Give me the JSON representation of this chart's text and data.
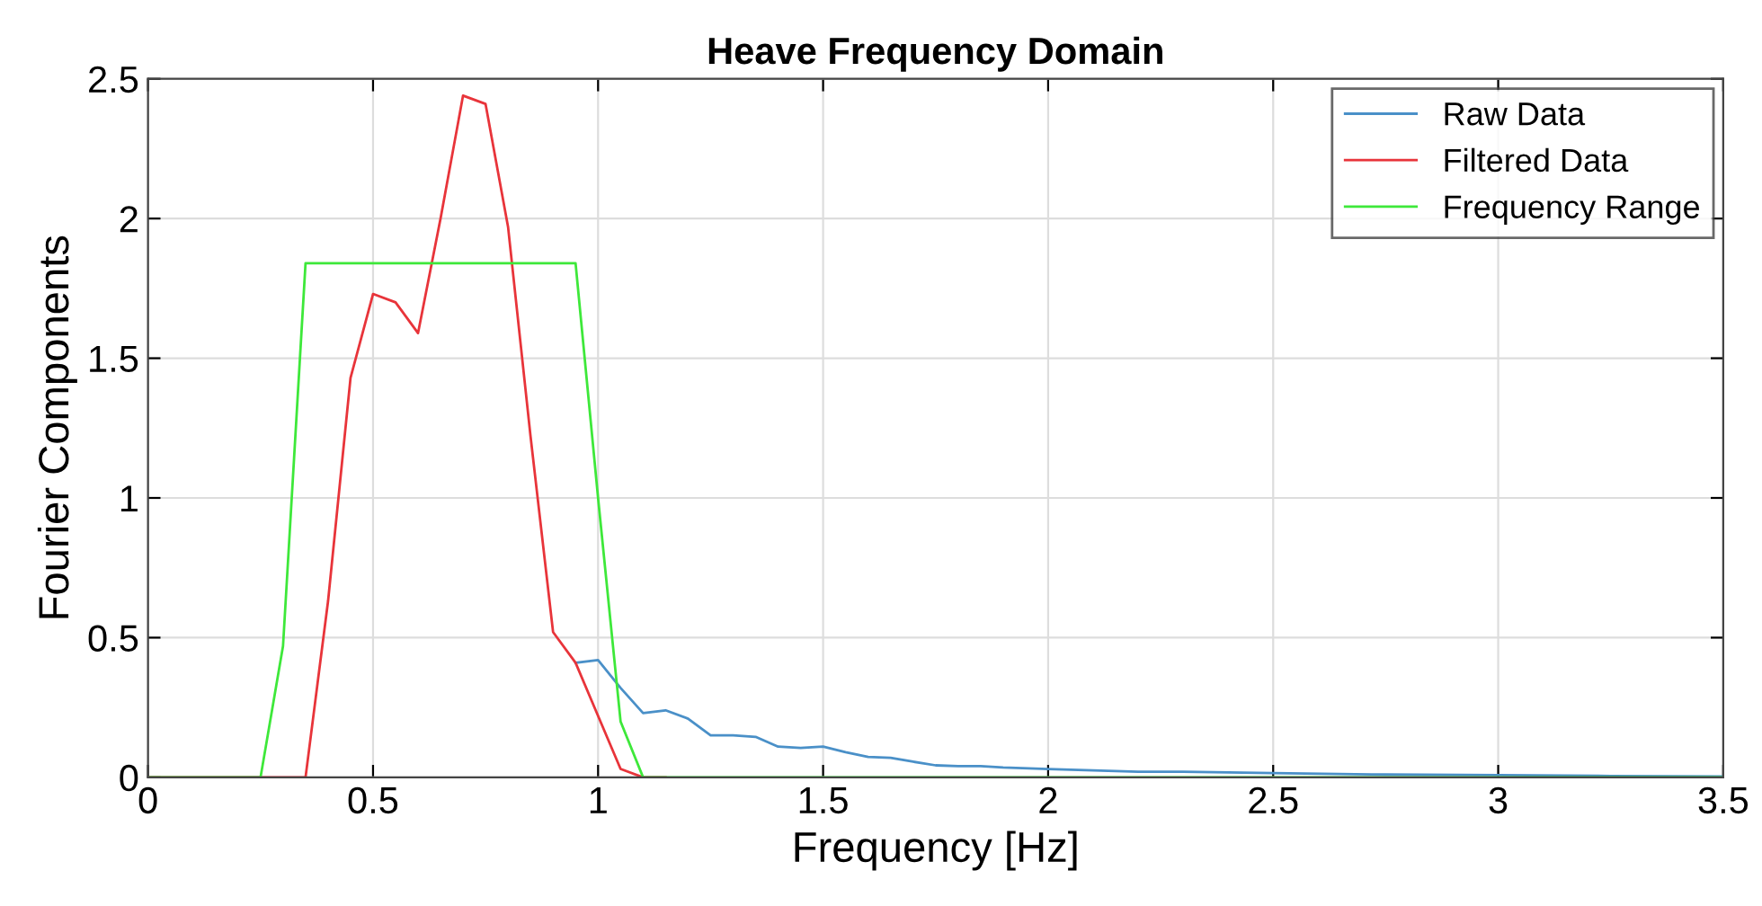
{
  "chart_data": {
    "type": "line",
    "title": "Heave Frequency Domain",
    "xlabel": "Frequency [Hz]",
    "ylabel": "Fourier Components",
    "xlim": [
      0,
      3.5
    ],
    "ylim": [
      0,
      2.5
    ],
    "xticks": [
      0,
      0.5,
      1,
      1.5,
      2,
      2.5,
      3,
      3.5
    ],
    "yticks": [
      0,
      0.5,
      1,
      1.5,
      2,
      2.5
    ],
    "grid": true,
    "legend": "top right",
    "line_style": "solid",
    "marker": "none",
    "series": [
      {
        "name": "Raw Data",
        "color": "#4a90c8",
        "x": [
          0.95,
          1.0,
          1.05,
          1.1,
          1.15,
          1.2,
          1.25,
          1.3,
          1.35,
          1.4,
          1.45,
          1.5,
          1.55,
          1.6,
          1.65,
          1.7,
          1.75,
          1.8,
          1.85,
          1.9,
          2.0,
          2.1,
          2.2,
          2.3,
          2.5,
          2.75,
          3.0,
          3.25,
          3.5
        ],
        "values": [
          0.41,
          0.42,
          0.32,
          0.23,
          0.24,
          0.21,
          0.15,
          0.15,
          0.145,
          0.11,
          0.105,
          0.11,
          0.09,
          0.073,
          0.07,
          0.056,
          0.043,
          0.04,
          0.04,
          0.035,
          0.03,
          0.025,
          0.02,
          0.02,
          0.015,
          0.01,
          0.008,
          0.005,
          0.003
        ]
      },
      {
        "name": "Filtered Data",
        "color": "#e8343a",
        "x": [
          0,
          0.35,
          0.4,
          0.45,
          0.5,
          0.55,
          0.6,
          0.65,
          0.7,
          0.75,
          0.8,
          0.85,
          0.9,
          0.95,
          1.0,
          1.05,
          1.1,
          1.15
        ],
        "values": [
          0,
          0,
          0.63,
          1.43,
          1.73,
          1.7,
          1.59,
          2.0,
          2.44,
          2.41,
          1.97,
          1.22,
          0.52,
          0.41,
          0.22,
          0.03,
          0,
          0
        ]
      },
      {
        "name": "Frequency Range",
        "color": "#3ee83a",
        "x": [
          0,
          0.25,
          0.3,
          0.35,
          0.95,
          1.0,
          1.05,
          1.1,
          3.5
        ],
        "values": [
          0,
          0,
          0.47,
          1.84,
          1.84,
          1.0,
          0.2,
          0,
          0
        ]
      }
    ]
  }
}
